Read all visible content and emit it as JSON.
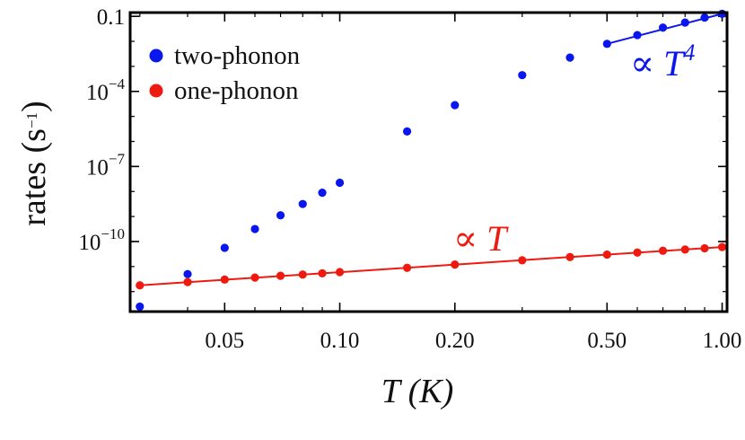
{
  "chart_data": {
    "type": "scatter",
    "xscale": "log",
    "yscale": "log",
    "xlim": [
      0.0283,
      1.03
    ],
    "ylim_exp": [
      -12.8,
      -0.85
    ],
    "xlabel": "T (K)",
    "ylabel": {
      "text": "rates (s",
      "sup": "−1",
      "close": ")"
    },
    "x_ticks": [
      {
        "value": 0.05,
        "label": "0.05"
      },
      {
        "value": 0.1,
        "label": "0.10"
      },
      {
        "value": 0.2,
        "label": "0.20"
      },
      {
        "value": 0.5,
        "label": "0.50"
      },
      {
        "value": 1.0,
        "label": "1.00"
      }
    ],
    "y_ticks": [
      {
        "exp": -1,
        "label": "0.1",
        "sup": ""
      },
      {
        "exp": -4,
        "label": "10",
        "sup": "−4"
      },
      {
        "exp": -7,
        "label": "10",
        "sup": "−7"
      },
      {
        "exp": -10,
        "label": "10",
        "sup": "−10"
      }
    ],
    "series": [
      {
        "name": "two-phonon",
        "color": "#0a16ee",
        "x": [
          0.03,
          0.04,
          0.05,
          0.06,
          0.07,
          0.08,
          0.09,
          0.1,
          0.15,
          0.2,
          0.3,
          0.4,
          0.5,
          0.6,
          0.7,
          0.8,
          0.9,
          1.0
        ],
        "y_exp": [
          -12.6,
          -11.3,
          -10.25,
          -9.5,
          -8.95,
          -8.5,
          -8.05,
          -7.65,
          -5.6,
          -4.55,
          -3.35,
          -2.65,
          -2.1,
          -1.75,
          -1.45,
          -1.25,
          -1.05,
          -0.9
        ]
      },
      {
        "name": "one-phonon",
        "color": "#ee1a10",
        "x": [
          0.03,
          0.04,
          0.05,
          0.06,
          0.07,
          0.08,
          0.09,
          0.1,
          0.15,
          0.2,
          0.3,
          0.4,
          0.5,
          0.6,
          0.7,
          0.8,
          0.9,
          1.0
        ],
        "y_exp": [
          -11.75,
          -11.62,
          -11.52,
          -11.44,
          -11.37,
          -11.32,
          -11.27,
          -11.22,
          -11.05,
          -10.92,
          -10.75,
          -10.62,
          -10.52,
          -10.44,
          -10.37,
          -10.32,
          -10.27,
          -10.22
        ]
      }
    ],
    "fits": [
      {
        "name": "two-phonon-fit",
        "color": "#0a16ee",
        "x": [
          0.5,
          1.0
        ],
        "y_exp": [
          -2.1,
          -0.9
        ]
      },
      {
        "name": "one-phonon-fit",
        "color": "#ee1a10",
        "x": [
          0.03,
          1.0
        ],
        "y_exp": [
          -11.75,
          -10.22
        ]
      }
    ],
    "legend": {
      "position": "top-left",
      "entries": [
        {
          "label": "two-phonon",
          "color": "#0a16ee"
        },
        {
          "label": "one-phonon",
          "color": "#ee1a10"
        }
      ]
    },
    "annotations": [
      {
        "text": "∝ T",
        "sup": "4",
        "color": "#0a16ee"
      },
      {
        "text": "∝ T",
        "sup": "",
        "color": "#ee1a10"
      }
    ]
  }
}
